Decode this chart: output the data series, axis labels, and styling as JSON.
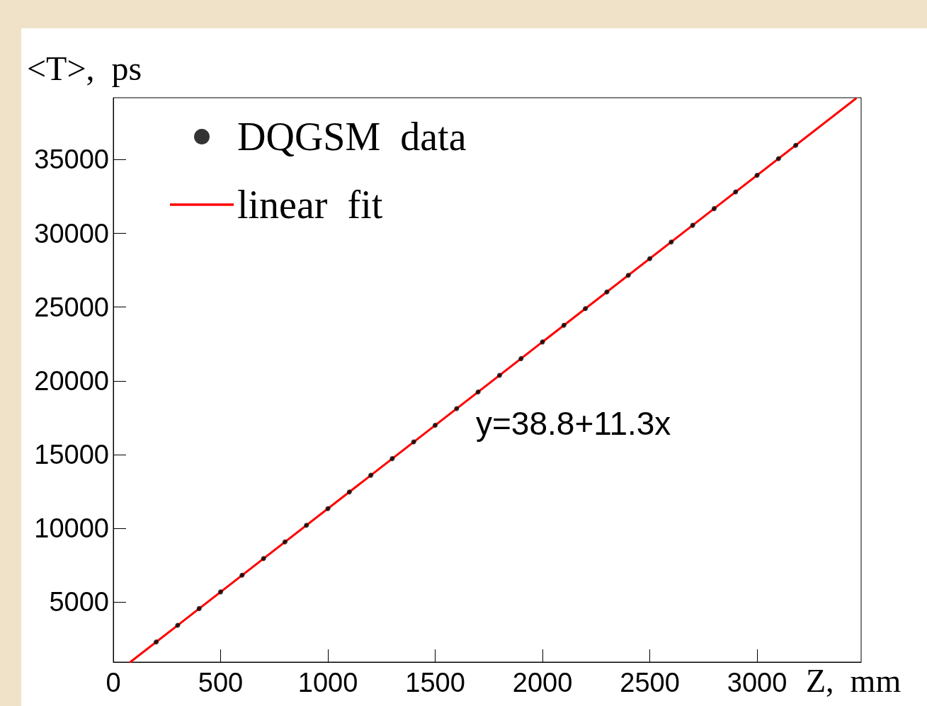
{
  "chart_data": {
    "type": "scatter",
    "xlabel": "Z,  mm",
    "ylabel": "<T>,  ps",
    "annotations": [
      "y=38.8+11.3x"
    ],
    "xlim": [
      0,
      3485
    ],
    "ylim": [
      930,
      39200
    ],
    "xticks": [
      0,
      500,
      1000,
      1500,
      2000,
      2500,
      3000
    ],
    "yticks": [
      5000,
      10000,
      15000,
      20000,
      25000,
      30000,
      35000
    ],
    "grid": false,
    "legend": "top left",
    "series": [
      {
        "name": "DQGSM  data",
        "marker": "circle",
        "color": "#000000",
        "x": [
          200,
          300,
          400,
          500,
          600,
          700,
          800,
          900,
          1000,
          1100,
          1200,
          1300,
          1400,
          1500,
          1600,
          1700,
          1800,
          1900,
          2000,
          2100,
          2200,
          2300,
          2400,
          2500,
          2600,
          2700,
          2800,
          2900,
          3000,
          3100,
          3180
        ],
        "values": [
          2300,
          3430,
          4560,
          5690,
          6820,
          7950,
          9080,
          10210,
          11340,
          12470,
          13600,
          14730,
          15860,
          16990,
          18120,
          19250,
          20380,
          21510,
          22640,
          23770,
          24900,
          26030,
          27160,
          28290,
          29420,
          30550,
          31680,
          32810,
          33940,
          35070,
          35970
        ]
      },
      {
        "name": "linear  fit",
        "type": "line",
        "color": "#ff0000",
        "marker": "none",
        "line_style": "solid",
        "x": [
          80,
          3460
        ],
        "values": [
          940,
          39140
        ]
      }
    ]
  }
}
